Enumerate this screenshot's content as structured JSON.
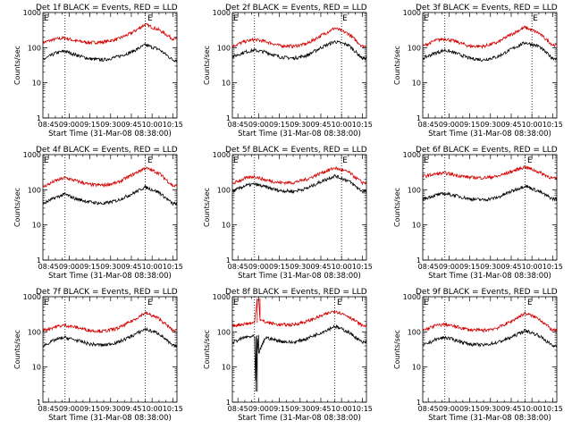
{
  "figure": {
    "background": "#ffffff",
    "event_color": "#000000",
    "lld_color": "#d40000",
    "axis_color": "#000000"
  },
  "chart_data": [
    {
      "type": "line",
      "title": "Det 1f BLACK = Events, RED = LLD",
      "xlabel": "Start Time (31-Mar-08 08:38:00)",
      "ylabel": "Counts/sec",
      "yscale": "log",
      "ylim": [
        1,
        1000
      ],
      "xlim": [
        "08:41",
        "10:18"
      ],
      "xtick_labels": [
        "08:45",
        "09:00",
        "09:15",
        "09:30",
        "09:45",
        "10:00",
        "10:15"
      ],
      "ytick_labels": [
        "1",
        "10",
        "100",
        "1000"
      ],
      "vlines": [
        "08:57",
        "09:55"
      ],
      "markers": [
        {
          "text": "E",
          "x": "08:41"
        },
        {
          "text": "E",
          "x": "09:56"
        }
      ],
      "series": [
        {
          "color": "red",
          "x": [
            "08:41",
            "08:50",
            "08:57",
            "09:05",
            "09:15",
            "09:25",
            "09:35",
            "09:45",
            "09:55",
            "10:05",
            "10:15"
          ],
          "values": [
            140,
            175,
            190,
            155,
            140,
            145,
            175,
            260,
            460,
            320,
            180
          ]
        },
        {
          "color": "black",
          "x": [
            "08:41",
            "08:50",
            "08:57",
            "09:05",
            "09:15",
            "09:25",
            "09:35",
            "09:45",
            "09:55",
            "10:05",
            "10:15"
          ],
          "values": [
            45,
            70,
            80,
            62,
            48,
            45,
            55,
            75,
            120,
            90,
            45
          ]
        }
      ]
    },
    {
      "type": "line",
      "title": "Det 2f BLACK = Events, RED = LLD",
      "xlabel": "Start Time (31-Mar-08 08:38:00)",
      "ylabel": "Counts/sec",
      "yscale": "log",
      "ylim": [
        1,
        1000
      ],
      "xlim": [
        "08:41",
        "10:18"
      ],
      "xtick_labels": [
        "08:45",
        "09:00",
        "09:15",
        "09:30",
        "09:45",
        "10:00",
        "10:15"
      ],
      "ytick_labels": [
        "1",
        "10",
        "100",
        "1000"
      ],
      "vlines": [
        "08:57",
        "10:00"
      ],
      "markers": [
        {
          "text": "E",
          "x": "08:41"
        },
        {
          "text": "E",
          "x": "10:00"
        }
      ],
      "series": [
        {
          "color": "red",
          "x": [
            "08:41",
            "08:50",
            "08:57",
            "09:05",
            "09:15",
            "09:25",
            "09:35",
            "09:45",
            "09:55",
            "10:05",
            "10:15"
          ],
          "values": [
            110,
            150,
            170,
            150,
            115,
            110,
            130,
            220,
            360,
            250,
            110
          ]
        },
        {
          "color": "black",
          "x": [
            "08:41",
            "08:50",
            "08:57",
            "09:05",
            "09:15",
            "09:25",
            "09:35",
            "09:45",
            "09:55",
            "10:05",
            "10:15"
          ],
          "values": [
            55,
            75,
            85,
            75,
            55,
            50,
            60,
            100,
            150,
            120,
            50
          ]
        }
      ]
    },
    {
      "type": "line",
      "title": "Det 3f BLACK = Events, RED = LLD",
      "xlabel": "Start Time (31-Mar-08 08:38:00)",
      "ylabel": "Counts/sec",
      "yscale": "log",
      "ylim": [
        1,
        1000
      ],
      "xlim": [
        "08:41",
        "10:18"
      ],
      "xtick_labels": [
        "08:45",
        "09:00",
        "09:15",
        "09:30",
        "09:45",
        "10:00",
        "10:15"
      ],
      "ytick_labels": [
        "1",
        "10",
        "100",
        "1000"
      ],
      "vlines": [
        "08:57",
        "10:00"
      ],
      "markers": [
        {
          "text": "E",
          "x": "08:41"
        },
        {
          "text": "E",
          "x": "10:00"
        }
      ],
      "series": [
        {
          "color": "red",
          "x": [
            "08:41",
            "08:50",
            "08:57",
            "09:05",
            "09:15",
            "09:25",
            "09:35",
            "09:45",
            "09:55",
            "10:05",
            "10:15"
          ],
          "values": [
            110,
            160,
            180,
            150,
            110,
            110,
            140,
            240,
            380,
            260,
            120
          ]
        },
        {
          "color": "black",
          "x": [
            "08:41",
            "08:50",
            "08:57",
            "09:05",
            "09:15",
            "09:25",
            "09:35",
            "09:45",
            "09:55",
            "10:05",
            "10:15"
          ],
          "values": [
            50,
            70,
            85,
            70,
            50,
            45,
            55,
            90,
            140,
            110,
            50
          ]
        }
      ]
    },
    {
      "type": "line",
      "title": "Det 4f BLACK = Events, RED = LLD",
      "xlabel": "Start Time (31-Mar-08 08:38:00)",
      "ylabel": "Counts/sec",
      "yscale": "log",
      "ylim": [
        1,
        1000
      ],
      "xlim": [
        "08:41",
        "10:18"
      ],
      "xtick_labels": [
        "08:45",
        "09:00",
        "09:15",
        "09:30",
        "09:45",
        "10:00",
        "10:15"
      ],
      "ytick_labels": [
        "1",
        "10",
        "100",
        "1000"
      ],
      "vlines": [
        "08:57",
        "09:55"
      ],
      "markers": [
        {
          "text": "E",
          "x": "08:41"
        },
        {
          "text": "E",
          "x": "09:56"
        }
      ],
      "series": [
        {
          "color": "red",
          "x": [
            "08:41",
            "08:50",
            "08:57",
            "09:05",
            "09:15",
            "09:25",
            "09:35",
            "09:45",
            "09:55",
            "10:05",
            "10:15"
          ],
          "values": [
            120,
            180,
            220,
            180,
            140,
            135,
            160,
            260,
            420,
            300,
            130
          ]
        },
        {
          "color": "black",
          "x": [
            "08:41",
            "08:50",
            "08:57",
            "09:05",
            "09:15",
            "09:25",
            "09:35",
            "09:45",
            "09:55",
            "10:05",
            "10:15"
          ],
          "values": [
            40,
            60,
            75,
            55,
            45,
            40,
            50,
            75,
            120,
            85,
            40
          ]
        }
      ]
    },
    {
      "type": "line",
      "title": "Det 5f BLACK = Events, RED = LLD",
      "xlabel": "Start Time (31-Mar-08 08:38:00)",
      "ylabel": "Counts/sec",
      "yscale": "log",
      "ylim": [
        1,
        1000
      ],
      "xlim": [
        "08:41",
        "10:18"
      ],
      "xtick_labels": [
        "08:45",
        "09:00",
        "09:15",
        "09:30",
        "09:45",
        "10:00",
        "10:15"
      ],
      "ytick_labels": [
        "1",
        "10",
        "100",
        "1000"
      ],
      "vlines": [
        "08:57",
        "10:00"
      ],
      "markers": [
        {
          "text": "E",
          "x": "08:41"
        },
        {
          "text": "E",
          "x": "10:00"
        }
      ],
      "series": [
        {
          "color": "red",
          "x": [
            "08:41",
            "08:50",
            "08:57",
            "09:05",
            "09:15",
            "09:25",
            "09:35",
            "09:45",
            "09:55",
            "10:05",
            "10:15"
          ],
          "values": [
            150,
            210,
            240,
            190,
            160,
            160,
            200,
            300,
            420,
            320,
            160
          ]
        },
        {
          "color": "black",
          "x": [
            "08:41",
            "08:50",
            "08:57",
            "09:05",
            "09:15",
            "09:25",
            "09:35",
            "09:45",
            "09:55",
            "10:05",
            "10:15"
          ],
          "values": [
            90,
            130,
            145,
            120,
            95,
            90,
            110,
            170,
            250,
            180,
            90
          ]
        }
      ]
    },
    {
      "type": "line",
      "title": "Det 6f BLACK = Events, RED = LLD",
      "xlabel": "Start Time (31-Mar-08 08:38:00)",
      "ylabel": "Counts/sec",
      "yscale": "log",
      "ylim": [
        1,
        1000
      ],
      "xlim": [
        "08:41",
        "10:18"
      ],
      "xtick_labels": [
        "08:45",
        "09:00",
        "09:15",
        "09:30",
        "09:45",
        "10:00",
        "10:15"
      ],
      "ytick_labels": [
        "1",
        "10",
        "100",
        "1000"
      ],
      "vlines": [
        "08:57",
        "09:55"
      ],
      "markers": [
        {
          "text": "E",
          "x": "08:41"
        },
        {
          "text": "E",
          "x": "09:56"
        }
      ],
      "series": [
        {
          "color": "red",
          "x": [
            "08:41",
            "08:50",
            "08:57",
            "09:05",
            "09:15",
            "09:25",
            "09:35",
            "09:45",
            "09:55",
            "10:05",
            "10:15"
          ],
          "values": [
            240,
            280,
            300,
            260,
            225,
            220,
            240,
            330,
            450,
            320,
            210
          ]
        },
        {
          "color": "black",
          "x": [
            "08:41",
            "08:50",
            "08:57",
            "09:05",
            "09:15",
            "09:25",
            "09:35",
            "09:45",
            "09:55",
            "10:05",
            "10:15"
          ],
          "values": [
            55,
            70,
            78,
            68,
            55,
            52,
            60,
            90,
            130,
            90,
            55
          ]
        }
      ]
    },
    {
      "type": "line",
      "title": "Det 7f BLACK = Events, RED = LLD",
      "xlabel": "Start Time (31-Mar-08 08:38:00)",
      "ylabel": "Counts/sec",
      "yscale": "log",
      "ylim": [
        1,
        1000
      ],
      "xlim": [
        "08:41",
        "10:18"
      ],
      "xtick_labels": [
        "08:45",
        "09:00",
        "09:15",
        "09:30",
        "09:45",
        "10:00",
        "10:15"
      ],
      "ytick_labels": [
        "1",
        "10",
        "100",
        "1000"
      ],
      "vlines": [
        "08:57",
        "09:55"
      ],
      "markers": [
        {
          "text": "E",
          "x": "08:41"
        },
        {
          "text": "E",
          "x": "09:56"
        }
      ],
      "series": [
        {
          "color": "red",
          "x": [
            "08:41",
            "08:50",
            "08:57",
            "09:05",
            "09:15",
            "09:25",
            "09:35",
            "09:45",
            "09:55",
            "10:05",
            "10:15"
          ],
          "values": [
            110,
            140,
            155,
            135,
            110,
            105,
            125,
            200,
            350,
            240,
            110
          ]
        },
        {
          "color": "black",
          "x": [
            "08:41",
            "08:50",
            "08:57",
            "09:05",
            "09:15",
            "09:25",
            "09:35",
            "09:45",
            "09:55",
            "10:05",
            "10:15"
          ],
          "values": [
            40,
            60,
            70,
            58,
            45,
            42,
            50,
            75,
            120,
            90,
            40
          ]
        }
      ]
    },
    {
      "type": "line",
      "title": "Det 8f BLACK = Events, RED = LLD",
      "xlabel": "Start Time (31-Mar-08 08:38:00)",
      "ylabel": "Counts/sec",
      "yscale": "log",
      "ylim": [
        1,
        1000
      ],
      "xlim": [
        "08:41",
        "10:18"
      ],
      "xtick_labels": [
        "08:45",
        "09:00",
        "09:15",
        "09:30",
        "09:45",
        "10:00",
        "10:15"
      ],
      "ytick_labels": [
        "1",
        "10",
        "100",
        "1000"
      ],
      "vlines": [
        "08:57",
        "09:55"
      ],
      "markers": [
        {
          "text": "E",
          "x": "08:41"
        },
        {
          "text": "E",
          "x": "09:56"
        }
      ],
      "series": [
        {
          "color": "red",
          "x": [
            "08:41",
            "08:50",
            "08:57",
            "08:59",
            "09:00",
            "09:01",
            "09:05",
            "09:15",
            "09:25",
            "09:35",
            "09:45",
            "09:55",
            "10:05",
            "10:15"
          ],
          "values": [
            150,
            170,
            180,
            900,
            900,
            220,
            190,
            160,
            160,
            200,
            280,
            400,
            280,
            150
          ]
        },
        {
          "color": "black",
          "x": [
            "08:41",
            "08:50",
            "08:57",
            "08:58",
            "08:59",
            "09:00",
            "09:05",
            "09:15",
            "09:25",
            "09:35",
            "09:45",
            "09:55",
            "10:05",
            "10:15"
          ],
          "values": [
            50,
            70,
            75,
            2,
            80,
            25,
            70,
            55,
            50,
            65,
            95,
            145,
            100,
            50
          ]
        }
      ]
    },
    {
      "type": "line",
      "title": "Det 9f BLACK = Events, RED = LLD",
      "xlabel": "Start Time (31-Mar-08 08:38:00)",
      "ylabel": "Counts/sec",
      "yscale": "log",
      "ylim": [
        1,
        1000
      ],
      "xlim": [
        "08:41",
        "10:18"
      ],
      "xtick_labels": [
        "08:45",
        "09:00",
        "09:15",
        "09:30",
        "09:45",
        "10:00",
        "10:15"
      ],
      "ytick_labels": [
        "1",
        "10",
        "100",
        "1000"
      ],
      "vlines": [
        "08:57",
        "09:55"
      ],
      "markers": [
        {
          "text": "E",
          "x": "08:41"
        },
        {
          "text": "E",
          "x": "09:56"
        }
      ],
      "series": [
        {
          "color": "red",
          "x": [
            "08:41",
            "08:50",
            "08:57",
            "09:05",
            "09:15",
            "09:25",
            "09:35",
            "09:45",
            "09:55",
            "10:05",
            "10:15"
          ],
          "values": [
            110,
            150,
            165,
            140,
            115,
            110,
            130,
            200,
            340,
            240,
            110
          ]
        },
        {
          "color": "black",
          "x": [
            "08:41",
            "08:50",
            "08:57",
            "09:05",
            "09:15",
            "09:25",
            "09:35",
            "09:45",
            "09:55",
            "10:05",
            "10:15"
          ],
          "values": [
            40,
            60,
            70,
            58,
            45,
            42,
            50,
            70,
            110,
            80,
            40
          ]
        }
      ]
    }
  ]
}
